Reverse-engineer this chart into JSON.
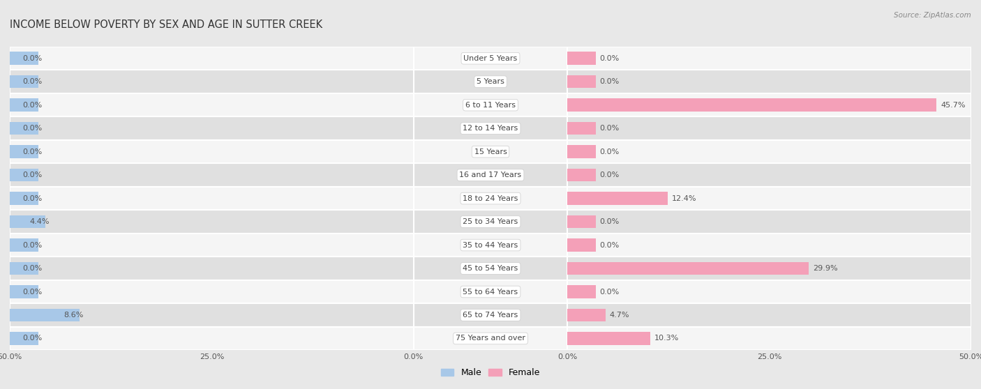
{
  "title": "INCOME BELOW POVERTY BY SEX AND AGE IN SUTTER CREEK",
  "source": "Source: ZipAtlas.com",
  "categories": [
    "Under 5 Years",
    "5 Years",
    "6 to 11 Years",
    "12 to 14 Years",
    "15 Years",
    "16 and 17 Years",
    "18 to 24 Years",
    "25 to 34 Years",
    "35 to 44 Years",
    "45 to 54 Years",
    "55 to 64 Years",
    "65 to 74 Years",
    "75 Years and over"
  ],
  "male": [
    0.0,
    0.0,
    0.0,
    0.0,
    0.0,
    0.0,
    0.0,
    4.4,
    0.0,
    0.0,
    0.0,
    8.6,
    0.0
  ],
  "female": [
    0.0,
    0.0,
    45.7,
    0.0,
    0.0,
    0.0,
    12.4,
    0.0,
    0.0,
    29.9,
    0.0,
    4.7,
    10.3
  ],
  "male_color": "#a8c8e8",
  "female_color": "#f4a0b8",
  "xlim": 50.0,
  "bar_height": 0.55,
  "stub_size": 3.5,
  "bg_color": "#e8e8e8",
  "row_bg_even": "#f5f5f5",
  "row_bg_odd": "#e0e0e0",
  "title_fontsize": 10.5,
  "label_fontsize": 8,
  "tick_fontsize": 8,
  "legend_fontsize": 9,
  "value_fontsize": 8,
  "center_label_bg": "#ffffff",
  "center_label_color": "#444444"
}
